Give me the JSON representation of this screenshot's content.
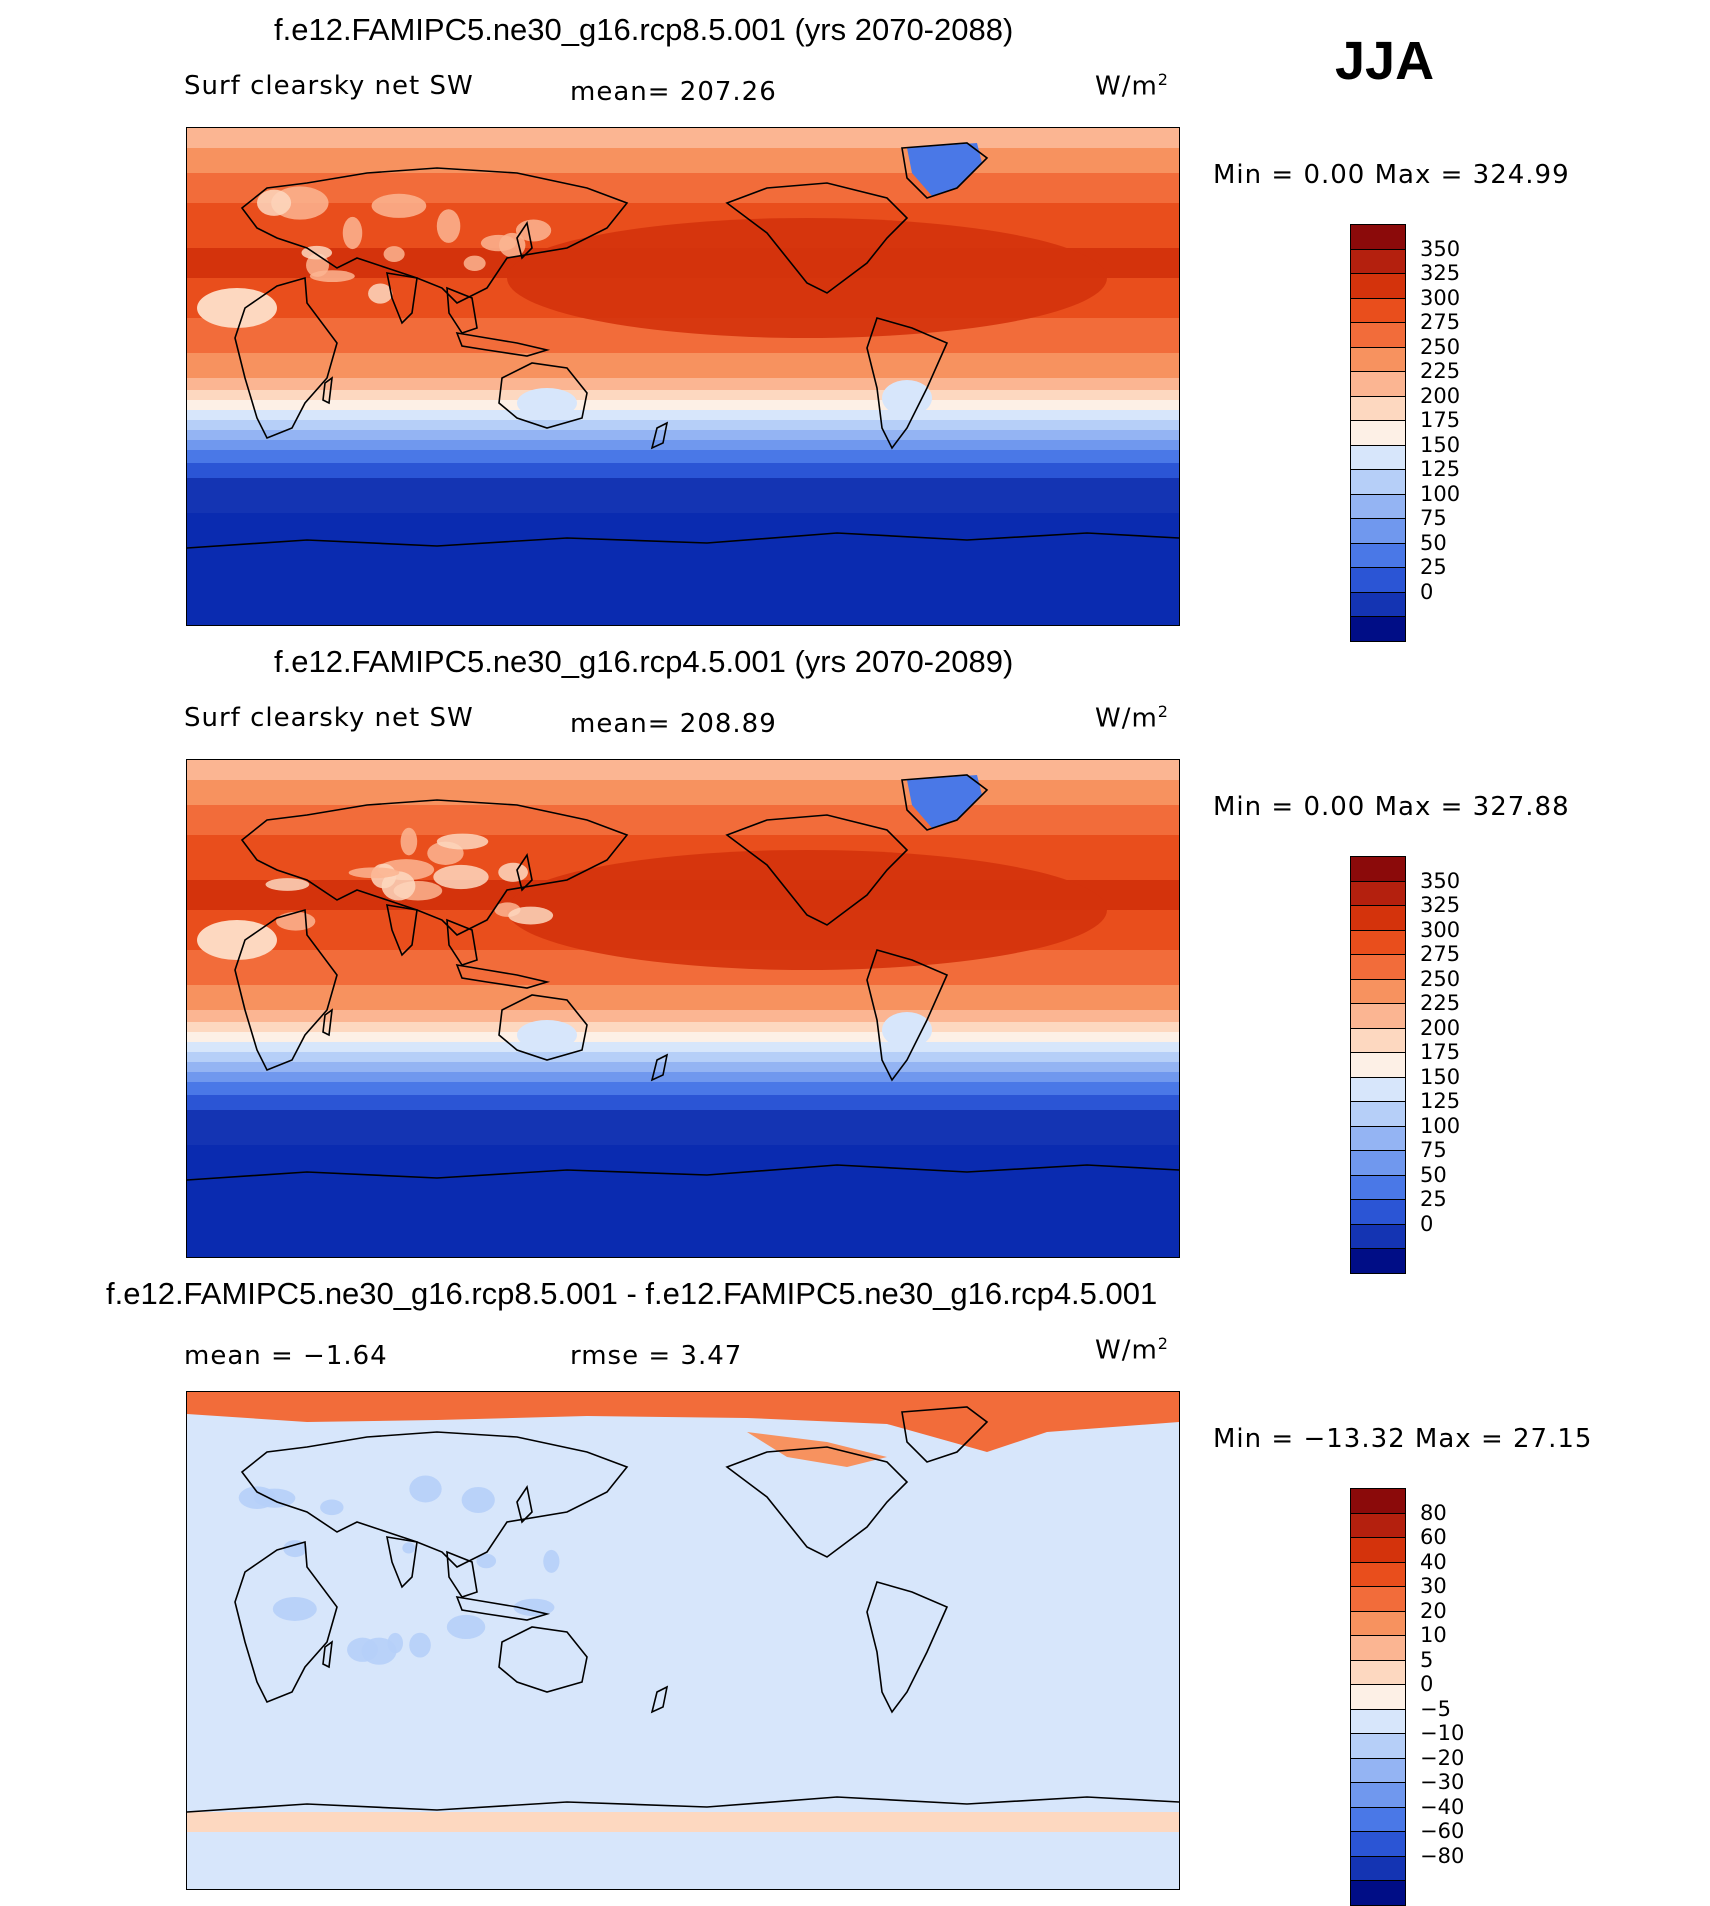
{
  "season": "JJA",
  "panels": [
    {
      "title": "f.e12.FAMIPC5.ne30_g16.rcp8.5.001 (yrs 2070-2088)",
      "left_label": "Surf clearsky net SW",
      "center_label": "mean= 207.26",
      "units_base": "W/m",
      "units_exp": "2",
      "minmax": "Min =    0.00 Max = 324.99",
      "colorbar": {
        "labels": [
          "350",
          "325",
          "300",
          "275",
          "250",
          "225",
          "200",
          "175",
          "150",
          "125",
          "100",
          "75",
          "50",
          "25",
          "0"
        ],
        "colors": [
          "#8b0a0a",
          "#b4200e",
          "#d4330c",
          "#e94e1c",
          "#f26c3a",
          "#f7925f",
          "#fbb592",
          "#fdd8c0",
          "#fdf0e6",
          "#d7e6fb",
          "#b6cff8",
          "#94b4f3",
          "#7098ee",
          "#4a78e7",
          "#2b55d5",
          "#1434b3",
          "#000d86"
        ]
      },
      "map_style": "full"
    },
    {
      "title": "f.e12.FAMIPC5.ne30_g16.rcp4.5.001 (yrs 2070-2089)",
      "left_label": "Surf clearsky net SW",
      "center_label": "mean= 208.89",
      "units_base": "W/m",
      "units_exp": "2",
      "minmax": "Min =    0.00 Max = 327.88",
      "colorbar": {
        "labels": [
          "350",
          "325",
          "300",
          "275",
          "250",
          "225",
          "200",
          "175",
          "150",
          "125",
          "100",
          "75",
          "50",
          "25",
          "0"
        ],
        "colors": [
          "#8b0a0a",
          "#b4200e",
          "#d4330c",
          "#e94e1c",
          "#f26c3a",
          "#f7925f",
          "#fbb592",
          "#fdd8c0",
          "#fdf0e6",
          "#d7e6fb",
          "#b6cff8",
          "#94b4f3",
          "#7098ee",
          "#4a78e7",
          "#2b55d5",
          "#1434b3",
          "#000d86"
        ]
      },
      "map_style": "full"
    },
    {
      "title": "f.e12.FAMIPC5.ne30_g16.rcp8.5.001 - f.e12.FAMIPC5.ne30_g16.rcp4.5.001",
      "left_label": "mean =   −1.64",
      "center_label": "rmse =    3.47",
      "units_base": "W/m",
      "units_exp": "2",
      "minmax": "Min = −13.32 Max =  27.15",
      "colorbar": {
        "labels": [
          "80",
          "60",
          "40",
          "30",
          "20",
          "10",
          "5",
          "0",
          "−5",
          "−10",
          "−20",
          "−30",
          "−40",
          "−60",
          "−80"
        ],
        "colors": [
          "#8b0a0a",
          "#b4200e",
          "#d4330c",
          "#e94e1c",
          "#f26c3a",
          "#f7925f",
          "#fbb592",
          "#fdd8c0",
          "#fdf0e6",
          "#d7e6fb",
          "#b6cff8",
          "#94b4f3",
          "#7098ee",
          "#4a78e7",
          "#2b55d5",
          "#1434b3",
          "#000d86"
        ]
      },
      "map_style": "diff"
    }
  ]
}
